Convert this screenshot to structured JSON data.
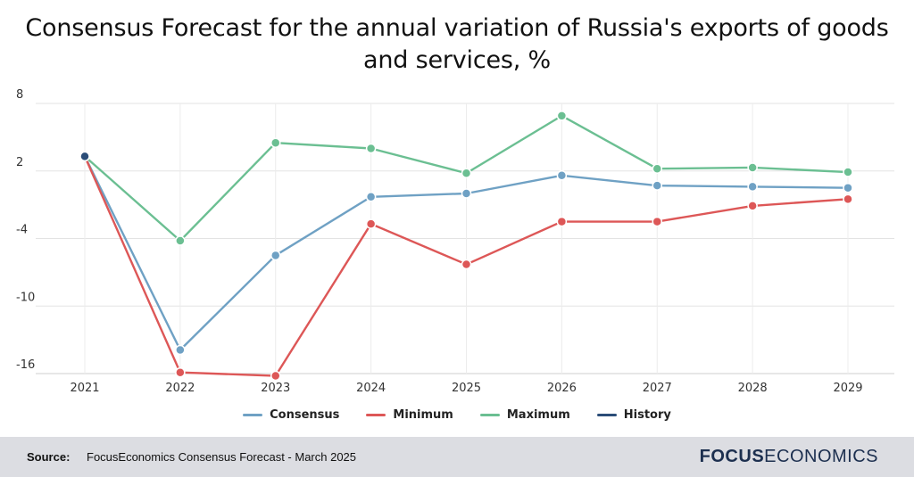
{
  "title": "Consensus Forecast for the annual variation of Russia's exports of goods and services, %",
  "source": {
    "label": "Source:",
    "text": "FocusEconomics Consensus Forecast - March 2025"
  },
  "brand": {
    "strong": "FOCUS",
    "light": "ECONOMICS"
  },
  "colors": {
    "consensus": "#6fa1c4",
    "minimum": "#dd5757",
    "maximum": "#6bbf92",
    "history": "#2b4d78"
  },
  "chart_data": {
    "type": "line",
    "title": "Consensus Forecast for the annual variation of Russia's exports of goods and services, %",
    "xlabel": "",
    "ylabel": "",
    "categories": [
      "2021",
      "2022",
      "2023",
      "2024",
      "2025",
      "2026",
      "2027",
      "2028",
      "2029"
    ],
    "ylim": [
      -16,
      8
    ],
    "yticks": [
      8,
      2,
      -4,
      -10,
      -16
    ],
    "grid": true,
    "legend_position": "bottom",
    "series": [
      {
        "name": "Consensus",
        "color": "#6fa1c4",
        "values": [
          3.3,
          -13.9,
          -5.5,
          -0.3,
          0.0,
          1.6,
          0.7,
          0.6,
          0.5
        ]
      },
      {
        "name": "Minimum",
        "color": "#dd5757",
        "values": [
          3.3,
          -15.9,
          -16.2,
          -2.7,
          -6.3,
          -2.5,
          -2.5,
          -1.1,
          -0.5
        ]
      },
      {
        "name": "Maximum",
        "color": "#6bbf92",
        "values": [
          3.3,
          -4.2,
          4.5,
          4.0,
          1.8,
          6.9,
          2.2,
          2.3,
          1.9
        ]
      },
      {
        "name": "History",
        "color": "#2b4d78",
        "values": [
          3.3,
          null,
          null,
          null,
          null,
          null,
          null,
          null,
          null
        ]
      }
    ]
  }
}
